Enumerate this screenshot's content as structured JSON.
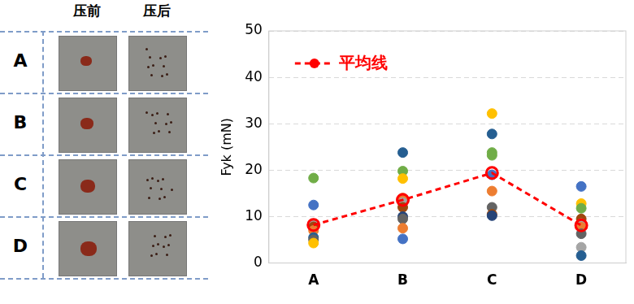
{
  "panel": {
    "headers": [
      "压前",
      "压后"
    ],
    "rows": [
      "A",
      "B",
      "C",
      "D"
    ]
  },
  "chart_data": {
    "type": "scatter",
    "categories": [
      "A",
      "B",
      "C",
      "D"
    ],
    "y_label": "Fyk (mN)",
    "ylim": [
      0,
      50
    ],
    "yticks": [
      0,
      10,
      20,
      30,
      40,
      50
    ],
    "grid": true,
    "legend": "upper left",
    "series": [
      {
        "type": "scatter",
        "marker": "circle",
        "x": [
          "A",
          "A",
          "A",
          "A",
          "A",
          "A",
          "A",
          "A",
          "B",
          "B",
          "B",
          "B",
          "B",
          "B",
          "B",
          "B",
          "B",
          "B",
          "C",
          "C",
          "C",
          "C",
          "C",
          "C",
          "C",
          "C",
          "C",
          "D",
          "D",
          "D",
          "D",
          "D",
          "D",
          "D",
          "D",
          "D"
        ],
        "values": [
          18.3,
          12.5,
          8.5,
          7.8,
          7.0,
          5.5,
          5.0,
          4.3,
          23.8,
          19.8,
          18.2,
          14.0,
          13.0,
          12.0,
          10.0,
          9.5,
          7.5,
          5.2,
          32.2,
          27.8,
          23.8,
          23.2,
          19.0,
          15.5,
          12.0,
          10.5,
          10.2,
          16.5,
          12.8,
          11.8,
          9.5,
          8.5,
          7.7,
          6.3,
          3.4,
          1.6
        ],
        "colors": [
          "#70ad47",
          "#4472c4",
          "#a5a5a5",
          "#9e480e",
          "#ed7d31",
          "#255e91",
          "#636363",
          "#ffc000",
          "#255e91",
          "#70ad47",
          "#ffc000",
          "#ed7d31",
          "#a5a5a5",
          "#9e480e",
          "#264478",
          "#636363",
          "#ed7d31",
          "#4472c4",
          "#ffc000",
          "#255e91",
          "#70ad47",
          "#70ad47",
          "#4472c4",
          "#ed7d31",
          "#636363",
          "#9e480e",
          "#264478",
          "#4472c4",
          "#ffc000",
          "#70ad47",
          "#9e480e",
          "#a5a5a5",
          "#ed7d31",
          "#636363",
          "#a5a5a5",
          "#255e91"
        ]
      },
      {
        "name": "平均线",
        "type": "line",
        "color": "#ff0000",
        "marker": "circle",
        "line_style": "dashed",
        "values": [
          8.2,
          13.6,
          19.4,
          8.1
        ]
      }
    ]
  }
}
